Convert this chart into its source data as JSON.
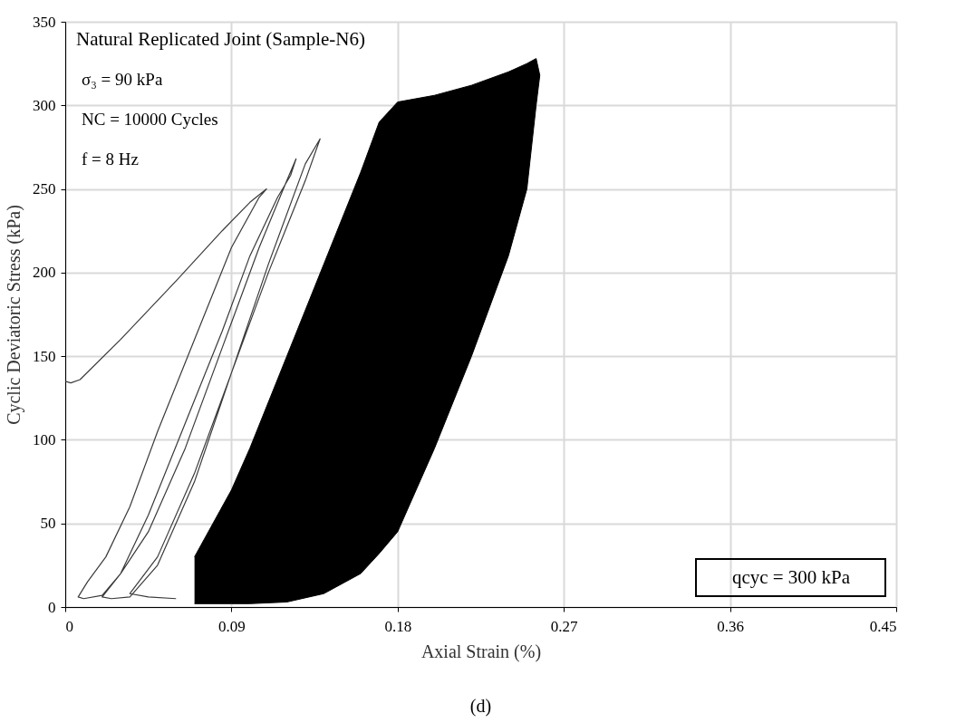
{
  "chart_data": {
    "type": "line",
    "xlabel": "Axial Strain (%)",
    "ylabel": "Cyclic Deviatoric Stress (kPa)",
    "xlim": [
      0,
      0.45
    ],
    "xticks": [
      0,
      0.09,
      0.18,
      0.27,
      0.36,
      0.45
    ],
    "ylim": [
      0,
      350
    ],
    "yticks": [
      0,
      50,
      100,
      150,
      200,
      250,
      300,
      350
    ],
    "grid": true,
    "legend": false,
    "series": [
      {
        "color": "#3a3a3a",
        "x": [
          0,
          0.003,
          0.008,
          0.03,
          0.06,
          0.085,
          0.1,
          0.109,
          0.105,
          0.09,
          0.07,
          0.05,
          0.035,
          0.022,
          0.012,
          0.007,
          0.01,
          0.02,
          0.03,
          0.045,
          0.065,
          0.085,
          0.1,
          0.115,
          0.122,
          0.125,
          0.12,
          0.105,
          0.085,
          0.065,
          0.045,
          0.03,
          0.02,
          0.025,
          0.035,
          0.05,
          0.07,
          0.09,
          0.11,
          0.13,
          0.138,
          0.13,
          0.11,
          0.09,
          0.07,
          0.05,
          0.035,
          0.045,
          0.06
        ],
        "values": [
          135,
          134,
          136,
          160,
          195,
          225,
          242,
          250,
          245,
          215,
          160,
          105,
          60,
          30,
          15,
          6,
          5,
          7,
          20,
          55,
          110,
          165,
          210,
          245,
          258,
          268,
          255,
          215,
          155,
          95,
          45,
          20,
          6,
          5,
          6,
          25,
          75,
          140,
          200,
          255,
          280,
          265,
          205,
          140,
          80,
          30,
          8,
          6,
          5
        ]
      },
      {
        "type": "area",
        "color": "#000000",
        "x": [
          0.07,
          0.08,
          0.09,
          0.1,
          0.12,
          0.14,
          0.16,
          0.17,
          0.18,
          0.2,
          0.22,
          0.24,
          0.25,
          0.255,
          0.257,
          0.255,
          0.25,
          0.24,
          0.22,
          0.2,
          0.18,
          0.17,
          0.16,
          0.14,
          0.12,
          0.1,
          0.09,
          0.08,
          0.07
        ],
        "values": [
          30,
          50,
          70,
          95,
          150,
          205,
          260,
          290,
          302,
          306,
          312,
          320,
          325,
          328,
          318,
          300,
          250,
          210,
          150,
          95,
          45,
          32,
          20,
          8,
          3,
          2,
          2,
          2,
          2
        ]
      }
    ],
    "annotations": [
      "Natural Replicated Joint (Sample-N6)",
      "σ₃ = 90 kPa",
      "NC = 10000 Cycles",
      "f = 8 Hz",
      "qcyc = 300 kPa",
      "(d)"
    ]
  }
}
